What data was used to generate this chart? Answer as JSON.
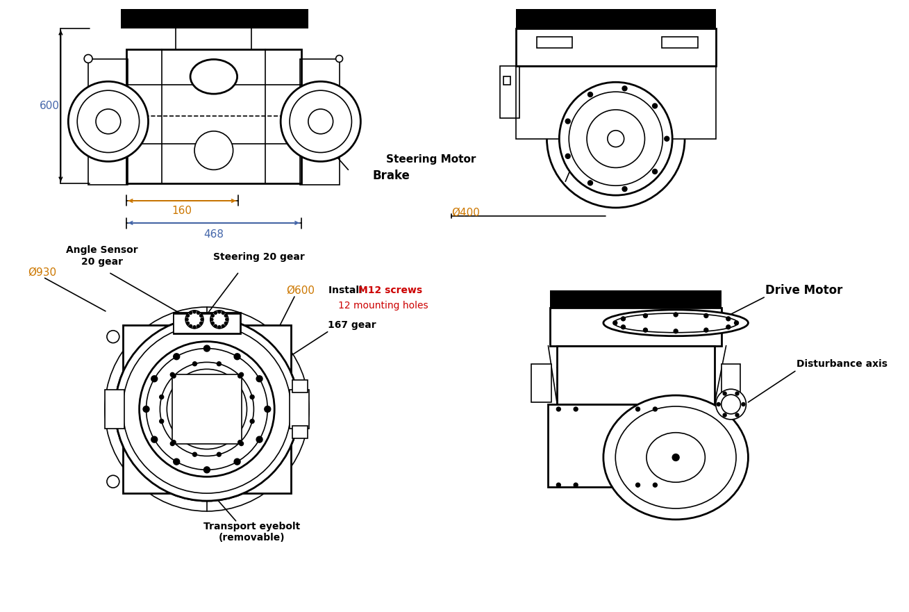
{
  "bg_color": "#ffffff",
  "line_color": "#000000",
  "dim_color_orange": "#cc7700",
  "dim_color_blue": "#4466aa",
  "red_color": "#cc0000",
  "fig_width": 13.09,
  "fig_height": 8.81,
  "labels": {
    "steering_motor": "Steering Motor",
    "brake": "Brake",
    "phi400": "Ø400",
    "phi930": "Ø930",
    "phi600": "Ø600",
    "angle_sensor": "Angle Sensor\n20 gear",
    "steering20gear": "Steering 20 gear",
    "gear167": "167 gear",
    "transport": "Transport eyebolt\n(removable)",
    "drive_motor": "Drive Motor",
    "disturbance": "Disturbance axis",
    "install_m12": "M12 screws",
    "mounting12": "12 mounting holes",
    "dim600": "600",
    "dim160": "160",
    "dim468": "468"
  }
}
